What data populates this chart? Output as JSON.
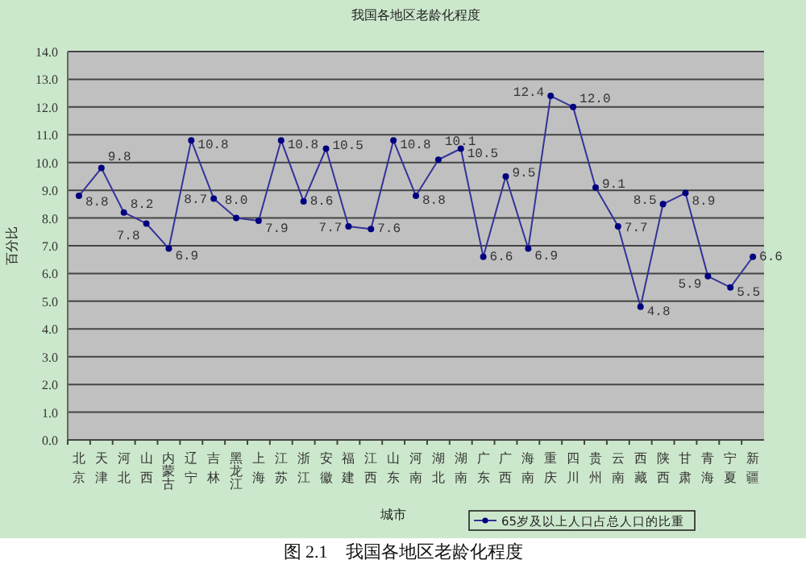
{
  "chart_data": {
    "type": "line",
    "title": "我国各地区老龄化程度",
    "xlabel": "城市",
    "ylabel": "百分比",
    "annotations": [
      "图 2.1　我国各地区老龄化程度"
    ],
    "categories": [
      "北京",
      "天津",
      "河北",
      "山西",
      "内蒙古",
      "辽宁",
      "吉林",
      "黑龙江",
      "上海",
      "江苏",
      "浙江",
      "安徽",
      "福建",
      "江西",
      "山东",
      "河南",
      "湖北",
      "湖南",
      "广东",
      "广西",
      "海南",
      "重庆",
      "四川",
      "贵州",
      "云南",
      "西藏",
      "陕西",
      "甘肃",
      "青海",
      "宁夏",
      "新疆"
    ],
    "series": [
      {
        "name": "65岁及以上人口占总人口的比重",
        "color": "#333399",
        "values": [
          8.8,
          9.8,
          8.2,
          7.8,
          6.9,
          10.8,
          8.7,
          8.0,
          7.9,
          10.8,
          8.6,
          10.5,
          7.7,
          7.6,
          10.8,
          8.8,
          10.1,
          10.5,
          6.6,
          9.5,
          6.9,
          12.4,
          12.0,
          9.1,
          7.7,
          4.8,
          8.5,
          8.9,
          5.9,
          5.5,
          6.6
        ],
        "value_labels": [
          "8.8",
          "9.8",
          "8.2",
          "7.8",
          "6.9",
          "10.8",
          "8.7",
          "8.0",
          "7.9",
          "10.8",
          "8.6",
          "10.5",
          "7.7",
          "7.6",
          "10.8",
          "8.8",
          "10.1",
          "10.5",
          "6.6",
          "9.5",
          "6.9",
          "12.4",
          "12.0",
          "9.1",
          "7.7",
          "4.8",
          "8.5",
          "8.9",
          "5.9",
          "5.5",
          "6.6"
        ]
      }
    ],
    "ylim": [
      0,
      14
    ],
    "yticks": [
      {
        "value": 0,
        "label": "0.0"
      },
      {
        "value": 1,
        "label": "1.0"
      },
      {
        "value": 2,
        "label": "2.0"
      },
      {
        "value": 3,
        "label": "3.0"
      },
      {
        "value": 4,
        "label": "4.0"
      },
      {
        "value": 5,
        "label": "5.0"
      },
      {
        "value": 6,
        "label": "6.0"
      },
      {
        "value": 7,
        "label": "7.0"
      },
      {
        "value": 8,
        "label": "8.0"
      },
      {
        "value": 9,
        "label": "9.0"
      },
      {
        "value": 10,
        "label": "10.0"
      },
      {
        "value": 11,
        "label": "11.0"
      },
      {
        "value": 12,
        "label": "12.0"
      },
      {
        "value": 13,
        "label": "13.0"
      },
      {
        "value": 14,
        "label": "14.0"
      }
    ],
    "grid": "y",
    "legend": "bottom",
    "marker": "circle",
    "line_style": "solid"
  }
}
